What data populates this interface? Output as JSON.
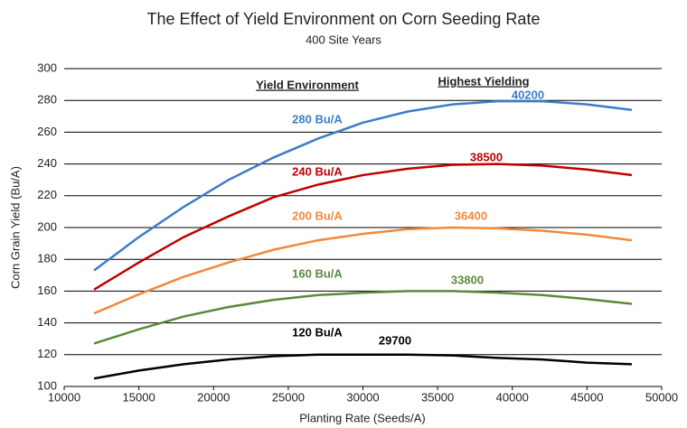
{
  "chart_data": {
    "type": "line",
    "title": "The Effect of Yield Environment on Corn Seeding Rate",
    "subtitle": "400 Site Years",
    "x_label": "Planting Rate (Seeds/A)",
    "y_label": "Corn Grain Yield (Bu/A)",
    "column_headers": [
      "Yield Environment",
      "Highest Yielding"
    ],
    "x": [
      12000,
      15000,
      18000,
      21000,
      24000,
      27000,
      30000,
      33000,
      36000,
      39000,
      42000,
      45000,
      48000
    ],
    "series": [
      {
        "name": "280 Bu/A",
        "color": "#3b7dc8",
        "peak_x": 40200,
        "values": [
          173,
          194,
          213,
          230,
          244,
          256,
          266,
          273,
          277.5,
          279.5,
          279.5,
          277.5,
          274
        ]
      },
      {
        "name": "240 Bu/A",
        "color": "#c00000",
        "peak_x": 38500,
        "values": [
          161,
          178,
          194,
          207,
          219,
          227,
          233,
          237,
          239.5,
          240,
          239,
          236.5,
          233
        ]
      },
      {
        "name": "200 Bu/A",
        "color": "#f08a3c",
        "peak_x": 36400,
        "values": [
          146,
          158,
          169,
          178,
          186,
          192,
          196,
          199,
          200,
          199.5,
          198,
          195.5,
          192
        ]
      },
      {
        "name": "160 Bu/A",
        "color": "#5b8a3a",
        "peak_x": 33800,
        "values": [
          127,
          136,
          144,
          150,
          154.5,
          157.5,
          159,
          160,
          160,
          159,
          157.5,
          155,
          152
        ]
      },
      {
        "name": "120 Bu/A",
        "color": "#000000",
        "peak_x": 29700,
        "values": [
          105,
          110,
          114,
          117,
          119,
          120,
          120,
          120,
          119.5,
          118,
          117,
          115,
          114
        ]
      }
    ],
    "xlim": [
      10000,
      50000
    ],
    "xticks": [
      10000,
      15000,
      20000,
      25000,
      30000,
      35000,
      40000,
      45000,
      50000
    ],
    "ylim": [
      100,
      300
    ],
    "yticks": [
      100,
      120,
      140,
      160,
      180,
      200,
      220,
      240,
      260,
      280,
      300
    ],
    "grid": true
  }
}
